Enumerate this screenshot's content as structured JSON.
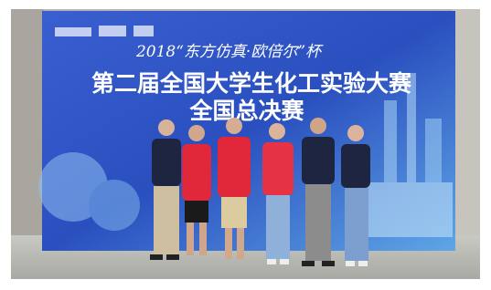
{
  "banner": {
    "line1": "2018“东方仿真·欧倍尔”杯",
    "line2": "第二届全国大学生化工实验大赛",
    "line3": "全国总决赛"
  }
}
